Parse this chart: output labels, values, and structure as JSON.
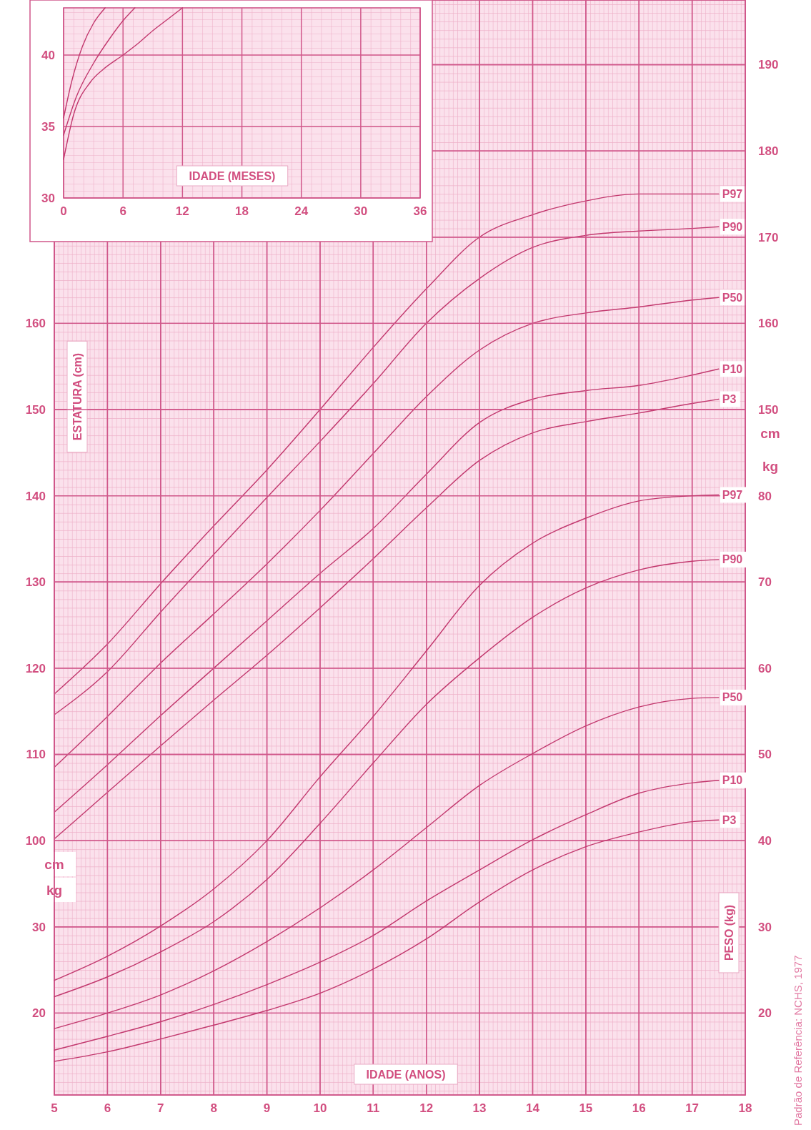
{
  "chart_data": [
    {
      "type": "line",
      "xlabel": "IDADE (MESES)",
      "xlim": [
        0,
        36
      ],
      "xticks": [
        0,
        6,
        12,
        18,
        24,
        30,
        36
      ],
      "ylim": [
        30,
        43.3
      ],
      "yticks": [
        30,
        35,
        40
      ],
      "grid": true,
      "series": [
        {
          "color": "#c2386e",
          "x": [
            0,
            0.8,
            1.9,
            3,
            4.2
          ],
          "values": [
            35.6,
            38.1,
            40.6,
            42.2,
            43.3
          ]
        },
        {
          "color": "#c2386e",
          "x": [
            0,
            1.3,
            3,
            4.7,
            6,
            7.2
          ],
          "values": [
            34.4,
            37.1,
            39.4,
            41.2,
            42.4,
            43.3
          ]
        },
        {
          "color": "#c2386e",
          "x": [
            0,
            1,
            2.7,
            4,
            6,
            7.5,
            9,
            10.5,
            12
          ],
          "values": [
            32.7,
            35.8,
            38.1,
            39,
            40,
            40.8,
            41.7,
            42.5,
            43.3
          ]
        }
      ]
    },
    {
      "type": "line",
      "ylabel": "ESTATURA (cm)",
      "x": [
        5,
        6,
        7,
        8,
        9,
        10,
        11,
        12,
        13,
        14,
        15,
        16,
        17,
        17.5
      ],
      "xlim": [
        5,
        18
      ],
      "xticks": [
        5,
        6,
        7,
        8,
        9,
        10,
        11,
        12,
        13,
        14,
        15,
        16,
        17,
        18
      ],
      "ylim": [
        70.5,
        197.5
      ],
      "yticks": [
        100,
        110,
        120,
        130,
        140,
        150,
        160
      ],
      "y2lim": [
        70.5,
        197.5
      ],
      "y2ticks": [
        150,
        160,
        170,
        180,
        190
      ],
      "tick_labels": "y",
      "grid": true,
      "annotations": [
        "cm",
        "kg",
        "cm",
        "kg",
        "Padrão de Referência: NCHS, 1977"
      ],
      "series": [
        {
          "name": "P97",
          "color": "#c2386e",
          "values": [
            117,
            122.8,
            129.8,
            136.5,
            143,
            150,
            157.2,
            164,
            170,
            172.6,
            174.2,
            175,
            175,
            175
          ]
        },
        {
          "name": "P90",
          "color": "#c2386e",
          "values": [
            114.6,
            119.6,
            126.5,
            133.2,
            139.8,
            146.3,
            153,
            160,
            165.2,
            168.8,
            170.2,
            170.7,
            171,
            171.2
          ]
        },
        {
          "name": "P50",
          "color": "#c2386e",
          "values": [
            108.5,
            114.4,
            120.6,
            126.3,
            132.1,
            138.3,
            144.9,
            151.5,
            156.9,
            160,
            161.2,
            161.9,
            162.7,
            163
          ]
        },
        {
          "name": "P10",
          "color": "#c2386e",
          "values": [
            103.3,
            108.8,
            114.5,
            120,
            125.5,
            131,
            136.2,
            142.5,
            148.5,
            151.2,
            152.2,
            152.8,
            154,
            154.7
          ]
        },
        {
          "name": "P3",
          "color": "#c2386e",
          "values": [
            100.2,
            105.6,
            111,
            116.3,
            121.5,
            127,
            132.7,
            138.6,
            144.1,
            147.3,
            148.6,
            149.6,
            150.7,
            151.2
          ]
        }
      ]
    },
    {
      "type": "line",
      "xlabel": "IDADE (ANOS)",
      "y2label": "PESO (kg)",
      "x": [
        5,
        6,
        7,
        8,
        9,
        10,
        11,
        12,
        13,
        14,
        15,
        16,
        17,
        17.5
      ],
      "xlim": [
        5,
        18
      ],
      "xticks": [
        5,
        6,
        7,
        8,
        9,
        10,
        11,
        12,
        13,
        14,
        15,
        16,
        17,
        18
      ],
      "ylim": [
        10.5,
        137.5
      ],
      "yticks": [
        20,
        30
      ],
      "y2lim": [
        10.5,
        137.5
      ],
      "y2ticks": [
        20,
        30,
        40,
        50,
        60,
        70,
        80
      ],
      "grid": true,
      "series": [
        {
          "name": "P97",
          "color": "#c2386e",
          "values": [
            23.8,
            26.6,
            30.1,
            34.4,
            40,
            47.4,
            54.4,
            62,
            69.6,
            74.5,
            77.4,
            79.4,
            80,
            80.1
          ]
        },
        {
          "name": "P90",
          "color": "#c2386e",
          "values": [
            21.9,
            24.2,
            27.1,
            30.6,
            35.5,
            42,
            49,
            55.8,
            61.2,
            65.9,
            69.3,
            71.4,
            72.4,
            72.6
          ]
        },
        {
          "name": "P50",
          "color": "#c2386e",
          "values": [
            18.2,
            20,
            22.1,
            24.9,
            28.3,
            32.2,
            36.6,
            41.5,
            46.4,
            50.1,
            53.3,
            55.5,
            56.5,
            56.6
          ]
        },
        {
          "name": "P10",
          "color": "#c2386e",
          "values": [
            15.7,
            17.3,
            19,
            21,
            23.3,
            25.9,
            29,
            33,
            36.6,
            40.1,
            43,
            45.5,
            46.7,
            47
          ]
        },
        {
          "name": "P3",
          "color": "#c2386e",
          "values": [
            14.4,
            15.5,
            17,
            18.6,
            20.3,
            22.3,
            25.1,
            28.6,
            32.9,
            36.6,
            39.3,
            41,
            42.2,
            42.4
          ]
        }
      ]
    }
  ]
}
